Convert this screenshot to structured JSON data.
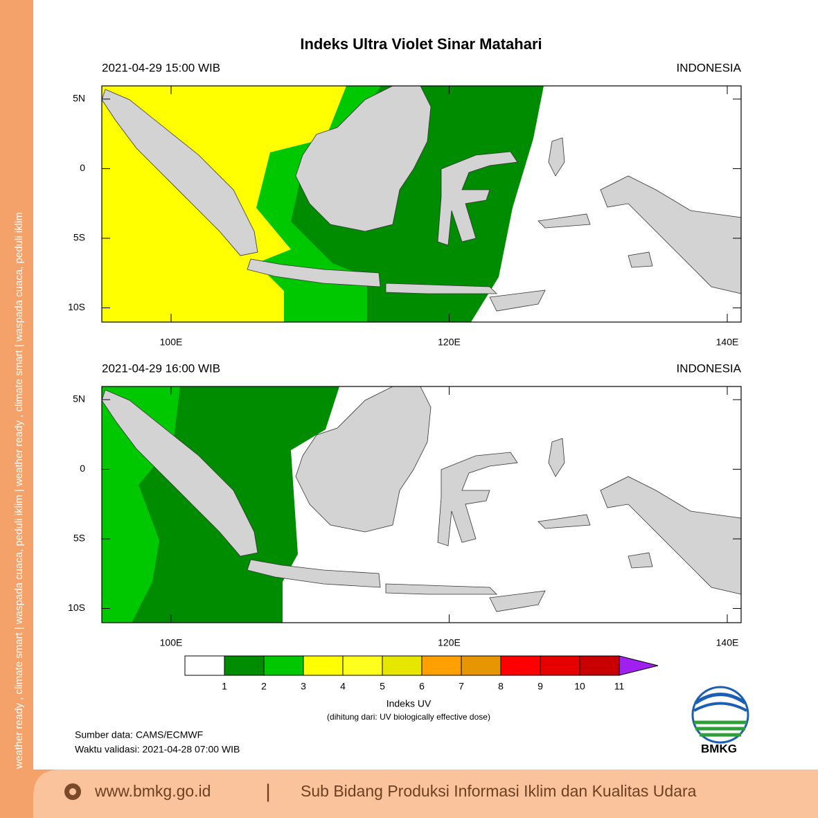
{
  "title": "Indeks Ultra Violet Sinar Matahari",
  "panels": [
    {
      "date_label": "2021-04-29  15:00 WIB",
      "region": "INDONESIA",
      "lat_labels": [
        "5N",
        "0",
        "5S",
        "10S"
      ],
      "lon_labels": [
        "100E",
        "120E",
        "140E"
      ]
    },
    {
      "date_label": "2021-04-29  16:00 WIB",
      "region": "INDONESIA",
      "lat_labels": [
        "5N",
        "0",
        "5S",
        "10S"
      ],
      "lon_labels": [
        "100E",
        "120E",
        "140E"
      ]
    }
  ],
  "colorbar": {
    "ticks": [
      "1",
      "2",
      "3",
      "4",
      "5",
      "6",
      "7",
      "8",
      "9",
      "10",
      "11"
    ],
    "colors": [
      "#ffffff",
      "#008c00",
      "#00c800",
      "#ffff00",
      "#ffff1e",
      "#e6e600",
      "#ffa000",
      "#e69600",
      "#ff0000",
      "#e60000",
      "#c80000"
    ],
    "over_color": "#a020f0",
    "title": "Indeks UV",
    "note": "(dihitung dari: UV biologically effective dose)"
  },
  "source": "Sumber data: CAMS/ECMWF",
  "validity": "Waktu validasi: 2021-04-28 07:00 WIB",
  "logo_text": "BMKG",
  "sidebar_text": "weather ready , climate smart  |  waspada cuaca, peduli iklim  |  weather ready , climate smart  |  waspada cuaca, peduli iklim",
  "footer": {
    "url": "www.bmkg.go.id",
    "divider": "|",
    "unit": "Sub Bidang Produksi Informasi Iklim dan Kualitas Udara"
  }
}
